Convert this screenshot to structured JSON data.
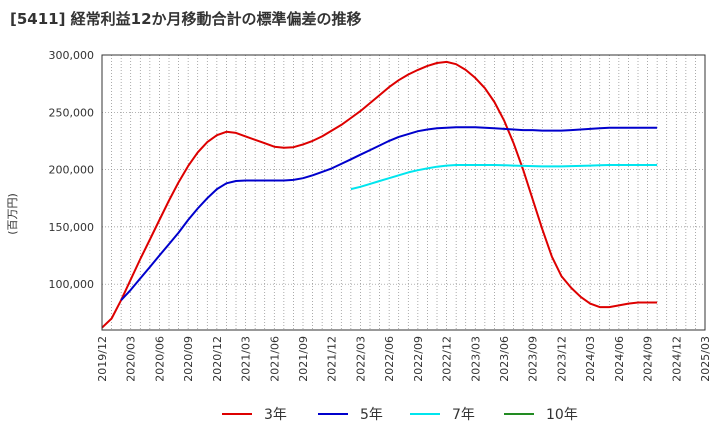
{
  "title": "[5411]  経常利益12か月移動合計の標準偏差の推移",
  "chart_data": {
    "type": "line",
    "title": "[5411]  経常利益12か月移動合計の標準偏差の推移",
    "ylabel": "(百万円)",
    "xlabel": "",
    "x_ticks": [
      "2019/12",
      "2020/03",
      "2020/06",
      "2020/09",
      "2020/12",
      "2021/03",
      "2021/06",
      "2021/09",
      "2021/12",
      "2022/03",
      "2022/06",
      "2022/09",
      "2022/12",
      "2023/03",
      "2023/06",
      "2023/09",
      "2023/12",
      "2024/03",
      "2024/06",
      "2024/09",
      "2024/12",
      "2025/03"
    ],
    "y_ticks": [
      "100,000",
      "150,000",
      "200,000",
      "250,000",
      "300,000"
    ],
    "y_tick_values": [
      100000,
      150000,
      200000,
      250000,
      300000
    ],
    "ylim": [
      60000,
      300000
    ],
    "xlim": [
      "2019/12",
      "2025/03"
    ],
    "grid": true,
    "legend_position": "bottom",
    "series": [
      {
        "name": "3年",
        "color": "#dd0000",
        "points": [
          [
            "2019/12",
            62000
          ],
          [
            "2020/01",
            70000
          ],
          [
            "2020/02",
            86000
          ],
          [
            "2020/03",
            104000
          ],
          [
            "2020/04",
            122000
          ],
          [
            "2020/05",
            139000
          ],
          [
            "2020/06",
            156000
          ],
          [
            "2020/07",
            173000
          ],
          [
            "2020/08",
            189000
          ],
          [
            "2020/09",
            203000
          ],
          [
            "2020/10",
            215000
          ],
          [
            "2020/11",
            224000
          ],
          [
            "2020/12",
            230000
          ],
          [
            "2021/01",
            233000
          ],
          [
            "2021/02",
            232000
          ],
          [
            "2021/03",
            229000
          ],
          [
            "2021/04",
            226000
          ],
          [
            "2021/05",
            223000
          ],
          [
            "2021/06",
            220000
          ],
          [
            "2021/07",
            219000
          ],
          [
            "2021/08",
            219500
          ],
          [
            "2021/09",
            222000
          ],
          [
            "2021/10",
            225000
          ],
          [
            "2021/11",
            229000
          ],
          [
            "2021/12",
            234000
          ],
          [
            "2022/01",
            239000
          ],
          [
            "2022/02",
            245000
          ],
          [
            "2022/03",
            251000
          ],
          [
            "2022/04",
            258000
          ],
          [
            "2022/05",
            265000
          ],
          [
            "2022/06",
            272000
          ],
          [
            "2022/07",
            278000
          ],
          [
            "2022/08",
            283000
          ],
          [
            "2022/09",
            287000
          ],
          [
            "2022/10",
            290500
          ],
          [
            "2022/11",
            293000
          ],
          [
            "2022/12",
            294000
          ],
          [
            "2023/01",
            292000
          ],
          [
            "2023/02",
            287000
          ],
          [
            "2023/03",
            280000
          ],
          [
            "2023/04",
            271000
          ],
          [
            "2023/05",
            259000
          ],
          [
            "2023/06",
            243000
          ],
          [
            "2023/07",
            223000
          ],
          [
            "2023/08",
            200000
          ],
          [
            "2023/09",
            174000
          ],
          [
            "2023/10",
            148000
          ],
          [
            "2023/11",
            124000
          ],
          [
            "2023/12",
            107000
          ],
          [
            "2024/01",
            97000
          ],
          [
            "2024/02",
            89000
          ],
          [
            "2024/03",
            83000
          ],
          [
            "2024/04",
            80000
          ],
          [
            "2024/05",
            80000
          ],
          [
            "2024/06",
            81500
          ],
          [
            "2024/07",
            83000
          ],
          [
            "2024/08",
            84000
          ],
          [
            "2024/09",
            84000
          ],
          [
            "2024/10",
            84000
          ]
        ]
      },
      {
        "name": "5年",
        "color": "#0000cc",
        "points": [
          [
            "2020/02",
            86000
          ],
          [
            "2020/03",
            95000
          ],
          [
            "2020/04",
            105000
          ],
          [
            "2020/05",
            115000
          ],
          [
            "2020/06",
            125000
          ],
          [
            "2020/07",
            135000
          ],
          [
            "2020/08",
            145000
          ],
          [
            "2020/09",
            156000
          ],
          [
            "2020/10",
            166000
          ],
          [
            "2020/11",
            175000
          ],
          [
            "2020/12",
            183000
          ],
          [
            "2021/01",
            188000
          ],
          [
            "2021/02",
            190000
          ],
          [
            "2021/03",
            190500
          ],
          [
            "2021/04",
            190500
          ],
          [
            "2021/05",
            190500
          ],
          [
            "2021/06",
            190500
          ],
          [
            "2021/07",
            190500
          ],
          [
            "2021/08",
            191000
          ],
          [
            "2021/09",
            192500
          ],
          [
            "2021/10",
            195000
          ],
          [
            "2021/11",
            198000
          ],
          [
            "2021/12",
            201000
          ],
          [
            "2022/01",
            205000
          ],
          [
            "2022/02",
            209000
          ],
          [
            "2022/03",
            213000
          ],
          [
            "2022/04",
            217000
          ],
          [
            "2022/05",
            221000
          ],
          [
            "2022/06",
            225000
          ],
          [
            "2022/07",
            228500
          ],
          [
            "2022/08",
            231000
          ],
          [
            "2022/09",
            233500
          ],
          [
            "2022/10",
            235000
          ],
          [
            "2022/11",
            236000
          ],
          [
            "2022/12",
            236500
          ],
          [
            "2023/01",
            237000
          ],
          [
            "2023/02",
            237000
          ],
          [
            "2023/03",
            237000
          ],
          [
            "2023/04",
            236500
          ],
          [
            "2023/05",
            236000
          ],
          [
            "2023/06",
            235500
          ],
          [
            "2023/07",
            235000
          ],
          [
            "2023/08",
            234500
          ],
          [
            "2023/09",
            234500
          ],
          [
            "2023/10",
            234000
          ],
          [
            "2023/11",
            234000
          ],
          [
            "2023/12",
            234000
          ],
          [
            "2024/01",
            234500
          ],
          [
            "2024/02",
            235000
          ],
          [
            "2024/03",
            235500
          ],
          [
            "2024/04",
            236000
          ],
          [
            "2024/05",
            236500
          ],
          [
            "2024/06",
            236500
          ],
          [
            "2024/07",
            236500
          ],
          [
            "2024/08",
            236500
          ],
          [
            "2024/09",
            236500
          ],
          [
            "2024/10",
            236500
          ]
        ]
      },
      {
        "name": "7年",
        "color": "#00e5ee",
        "points": [
          [
            "2022/02",
            183000
          ],
          [
            "2022/03",
            185000
          ],
          [
            "2022/04",
            187500
          ],
          [
            "2022/05",
            190000
          ],
          [
            "2022/06",
            192500
          ],
          [
            "2022/07",
            195000
          ],
          [
            "2022/08",
            197500
          ],
          [
            "2022/09",
            199500
          ],
          [
            "2022/10",
            201000
          ],
          [
            "2022/11",
            202500
          ],
          [
            "2022/12",
            203500
          ],
          [
            "2023/01",
            204000
          ],
          [
            "2023/02",
            204000
          ],
          [
            "2023/03",
            204000
          ],
          [
            "2023/04",
            204000
          ],
          [
            "2023/05",
            204000
          ],
          [
            "2023/06",
            203800
          ],
          [
            "2023/07",
            203500
          ],
          [
            "2023/08",
            203200
          ],
          [
            "2023/09",
            203000
          ],
          [
            "2023/10",
            202800
          ],
          [
            "2023/11",
            202800
          ],
          [
            "2023/12",
            202800
          ],
          [
            "2024/01",
            203000
          ],
          [
            "2024/02",
            203200
          ],
          [
            "2024/03",
            203500
          ],
          [
            "2024/04",
            203800
          ],
          [
            "2024/05",
            204000
          ],
          [
            "2024/06",
            204000
          ],
          [
            "2024/07",
            204000
          ],
          [
            "2024/08",
            204000
          ],
          [
            "2024/09",
            204000
          ],
          [
            "2024/10",
            204000
          ]
        ]
      },
      {
        "name": "10年",
        "color": "#228b22",
        "points": []
      }
    ]
  }
}
